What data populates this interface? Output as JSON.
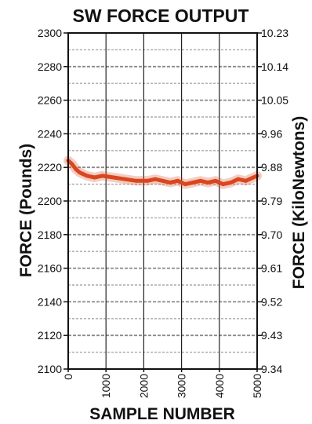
{
  "chart_data": {
    "type": "line",
    "title": "SW FORCE OUTPUT",
    "xlabel": "SAMPLE NUMBER",
    "ylabel": "FORCE (Pounds)",
    "y2label": "FORCE (KiloNewtons)",
    "xlim": [
      0,
      5000
    ],
    "ylim": [
      2100,
      2300
    ],
    "y2lim": [
      9.34,
      10.23
    ],
    "x_ticks": [
      "0",
      "1000",
      "2000",
      "3000",
      "4000",
      "5000"
    ],
    "x_tick_values": [
      0,
      1000,
      2000,
      3000,
      4000,
      5000
    ],
    "y_ticks": [
      "2300",
      "2280",
      "2260",
      "2240",
      "2220",
      "2200",
      "2180",
      "2160",
      "2140",
      "2120",
      "2100"
    ],
    "y_tick_values": [
      2300,
      2280,
      2260,
      2240,
      2220,
      2200,
      2180,
      2160,
      2140,
      2120,
      2100
    ],
    "y2_ticks": [
      "10.23",
      "10.14",
      "10.05",
      "9.96",
      "9.88",
      "9.79",
      "9.70",
      "9.61",
      "9.52",
      "9.43",
      "9.34"
    ],
    "grid": true,
    "series": [
      {
        "color": "#d9471f",
        "x": [
          0,
          100,
          200,
          300,
          400,
          500,
          700,
          900,
          1200,
          1500,
          1800,
          2100,
          2300,
          2500,
          2700,
          2900,
          3100,
          3300,
          3500,
          3700,
          3900,
          4100,
          4300,
          4500,
          4700,
          4900,
          5000
        ],
        "y": [
          2224,
          2222,
          2219,
          2217,
          2216,
          2215,
          2214,
          2215,
          2214,
          2213,
          2212,
          2212,
          2213,
          2212,
          2211,
          2212,
          2210,
          2211,
          2212,
          2211,
          2212,
          2210,
          2211,
          2213,
          2212,
          2214,
          2215
        ]
      }
    ]
  }
}
